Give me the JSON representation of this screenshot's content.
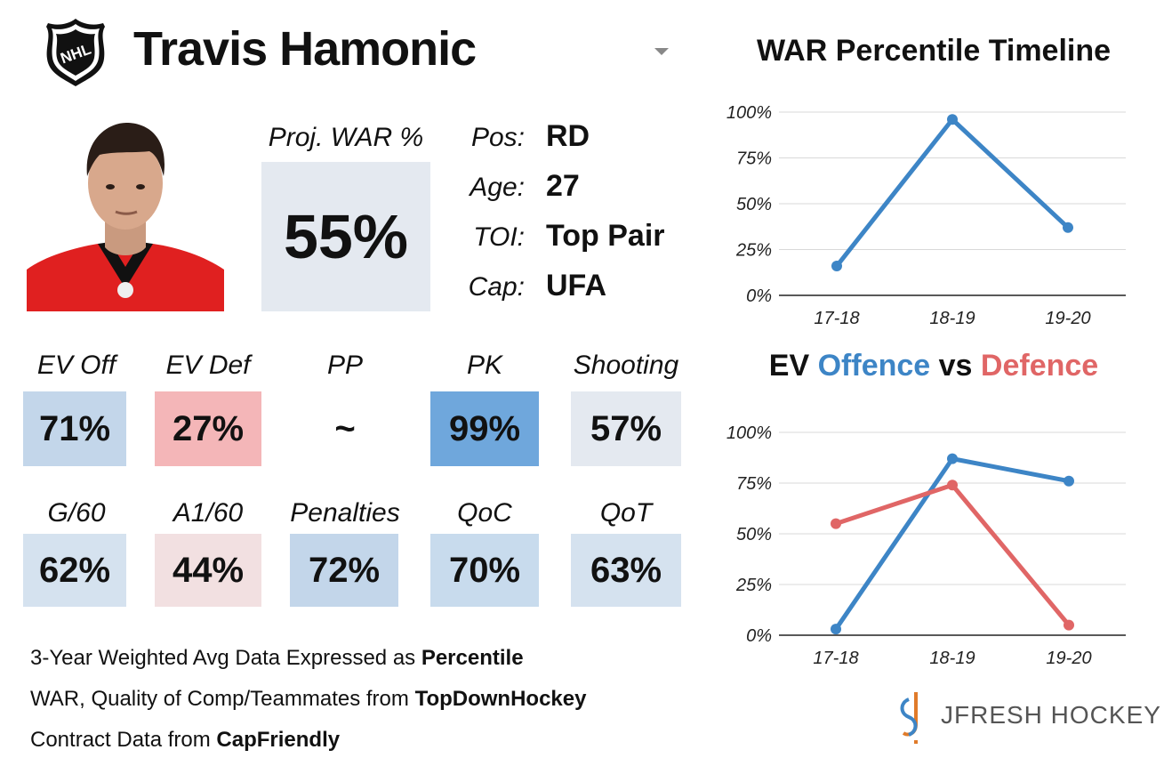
{
  "header": {
    "player_name": "Travis Hamonic",
    "league_logo": "NHL"
  },
  "projection": {
    "label": "Proj. WAR %",
    "value": "55%"
  },
  "info": [
    {
      "label": "Pos:",
      "value": "RD"
    },
    {
      "label": "Age:",
      "value": "27"
    },
    {
      "label": "TOI:",
      "value": "Top Pair"
    },
    {
      "label": "Cap:",
      "value": "UFA"
    }
  ],
  "stats_row1": [
    {
      "label": "EV Off",
      "value": "71%",
      "color": "#c3d6ea"
    },
    {
      "label": "EV Def",
      "value": "27%",
      "color": "#f4b6b8"
    },
    {
      "label": "PP",
      "value": "~",
      "color": "#ffffff"
    },
    {
      "label": "PK",
      "value": "99%",
      "color": "#6fa7dc"
    },
    {
      "label": "Shooting",
      "value": "57%",
      "color": "#e4e9f0"
    }
  ],
  "stats_row2": [
    {
      "label": "G/60",
      "value": "62%",
      "color": "#d5e2ef"
    },
    {
      "label": "A1/60",
      "value": "44%",
      "color": "#f2e0e1"
    },
    {
      "label": "Penalties",
      "value": "72%",
      "color": "#c3d6ea"
    },
    {
      "label": "QoC",
      "value": "70%",
      "color": "#c8dbed"
    },
    {
      "label": "QoT",
      "value": "63%",
      "color": "#d5e2ef"
    }
  ],
  "notes": [
    {
      "text": "3-Year Weighted Avg Data Expressed as ",
      "bold": "Percentile"
    },
    {
      "text": "WAR, Quality of Comp/Teammates from ",
      "bold": "TopDownHockey"
    },
    {
      "text": "Contract Data from ",
      "bold": "CapFriendly"
    }
  ],
  "branding": {
    "text": "JFRESH HOCKEY"
  },
  "chart_titles": {
    "war": "WAR Percentile Timeline",
    "ev_prefix": "EV ",
    "ev_offence": "Offence",
    "ev_vs": " vs ",
    "ev_defence": "Defence"
  },
  "colors": {
    "offence": "#3d85c6",
    "defence": "#e06666",
    "grid": "#d9d9d9"
  },
  "chart_data": [
    {
      "type": "line",
      "title": "WAR Percentile Timeline",
      "categories": [
        "17-18",
        "18-19",
        "19-20"
      ],
      "series": [
        {
          "name": "WAR",
          "values": [
            16,
            96,
            37
          ]
        }
      ],
      "ylim": [
        0,
        100
      ],
      "yticks": [
        "0%",
        "25%",
        "50%",
        "75%",
        "100%"
      ],
      "xlabel": "",
      "ylabel": ""
    },
    {
      "type": "line",
      "title": "EV Offence vs Defence",
      "categories": [
        "17-18",
        "18-19",
        "19-20"
      ],
      "series": [
        {
          "name": "Offence",
          "values": [
            3,
            87,
            76
          ]
        },
        {
          "name": "Defence",
          "values": [
            55,
            74,
            5
          ]
        }
      ],
      "ylim": [
        0,
        100
      ],
      "yticks": [
        "0%",
        "25%",
        "50%",
        "75%",
        "100%"
      ],
      "xlabel": "",
      "ylabel": ""
    }
  ]
}
